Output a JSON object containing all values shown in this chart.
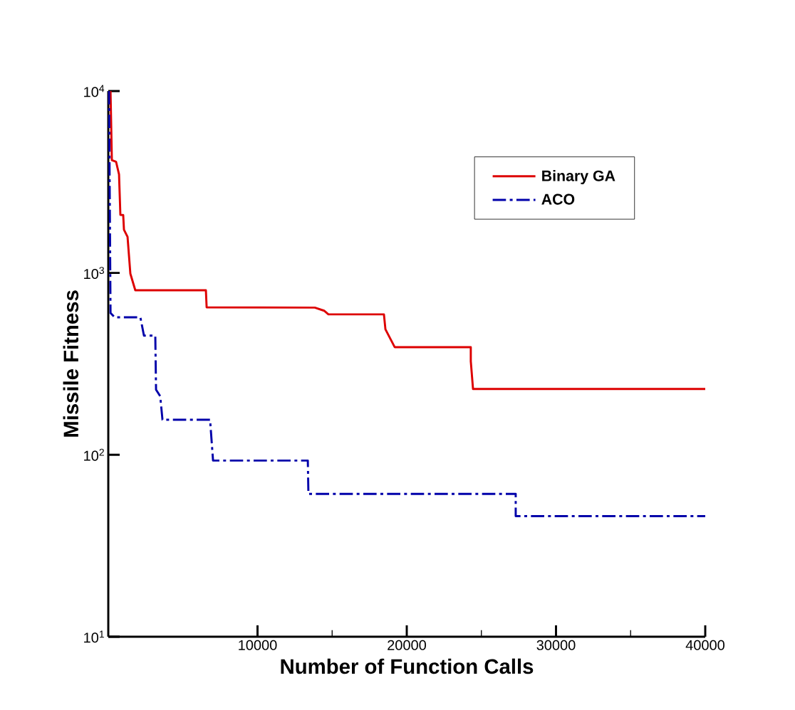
{
  "chart_data": {
    "type": "line",
    "xlabel": "Number of Function Calls",
    "ylabel": "Missile Fitness",
    "log": "y",
    "xlim": [
      0,
      40000
    ],
    "xticks": [
      10000,
      20000,
      30000,
      40000
    ],
    "ylim": [
      10,
      10000
    ],
    "yticks": [
      {
        "value": 10,
        "label": "10$^{1}$"
      },
      {
        "value": 100,
        "label": "10$^{2}$"
      },
      {
        "value": 1000,
        "label": "10$^{3}$"
      },
      {
        "value": 10000,
        "label": "10$^{4}$"
      }
    ],
    "legend": "top right",
    "series": [
      {
        "name": "Binary GA",
        "color": "#dd0000",
        "line_style": "solid",
        "x": [
          150,
          240,
          520,
          720,
          810,
          1000,
          1050,
          1290,
          1480,
          1810,
          6540,
          6590,
          13840,
          14460,
          14750,
          18470,
          18570,
          19190,
          24290,
          24290,
          24440,
          40000
        ],
        "values": [
          10000,
          4170,
          4090,
          3480,
          2085,
          2080,
          1730,
          1580,
          990,
          803,
          803,
          647,
          645,
          620,
          592,
          592,
          490,
          391,
          391,
          327,
          230,
          230
        ]
      },
      {
        "name": "ACO",
        "color": "#0000aa",
        "line_style": "dashdot",
        "x": [
          50,
          150,
          430,
          2150,
          2390,
          3150,
          3200,
          3480,
          3630,
          6820,
          7020,
          13370,
          13410,
          27300,
          27300,
          40000
        ],
        "values": [
          10000,
          602,
          570,
          570,
          452,
          452,
          228,
          210,
          156,
          156,
          93,
          93,
          61,
          61,
          46,
          46
        ]
      }
    ]
  }
}
